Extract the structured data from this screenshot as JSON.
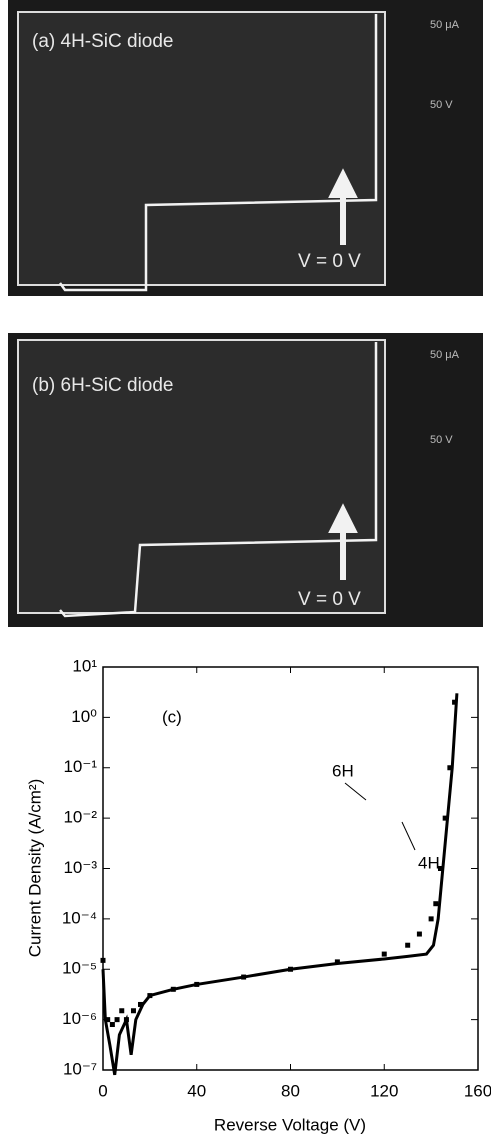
{
  "panels": [
    {
      "label": "(a) 4H-SiC diode",
      "annotation": "V = 0 V",
      "scale_labels": [
        "50 μA",
        "50 V"
      ]
    },
    {
      "label": "(b) 6H-SiC diode",
      "annotation": "V = 0 V",
      "scale_labels": [
        "50 μA",
        "50 V"
      ]
    }
  ],
  "chart_data": {
    "type": "scatter",
    "annotation": "(c)",
    "x_label": "Reverse Voltage (V)",
    "y_label": "Current Density (A/cm²)",
    "xlim": [
      0,
      160
    ],
    "xticks": [
      0,
      40,
      80,
      120,
      160
    ],
    "ylim": [
      1e-07,
      10
    ],
    "y_scale": "log",
    "yticks": [
      {
        "value": 1e-07,
        "label": "10⁻⁷"
      },
      {
        "value": 1e-06,
        "label": "10⁻⁶"
      },
      {
        "value": 1e-05,
        "label": "10⁻⁵"
      },
      {
        "value": 0.0001,
        "label": "10⁻⁴"
      },
      {
        "value": 0.001,
        "label": "10⁻³"
      },
      {
        "value": 0.01,
        "label": "10⁻²"
      },
      {
        "value": 0.1,
        "label": "10⁻¹"
      },
      {
        "value": 1,
        "label": "10⁰"
      },
      {
        "value": 10,
        "label": "10¹"
      }
    ],
    "series": [
      {
        "name": "6H",
        "color": "#000000",
        "x": [
          0,
          2,
          4,
          6,
          8,
          10,
          13,
          16,
          20,
          30,
          40,
          60,
          80,
          100,
          120,
          130,
          135,
          140,
          142,
          144,
          146,
          148,
          150
        ],
        "values": [
          1.5e-05,
          1e-06,
          8e-07,
          1e-06,
          1.5e-06,
          1e-06,
          1.5e-06,
          2e-06,
          3e-06,
          4e-06,
          5e-06,
          7e-06,
          1e-05,
          1.4e-05,
          2e-05,
          3e-05,
          5e-05,
          0.0001,
          0.0002,
          0.001,
          0.01,
          0.1,
          2
        ]
      },
      {
        "name": "4H",
        "color": "#000000",
        "x": [
          0,
          1,
          3,
          5,
          7,
          10,
          12,
          14,
          17,
          20,
          30,
          40,
          60,
          80,
          100,
          120,
          130,
          138,
          141,
          143,
          145,
          147,
          149,
          151
        ],
        "values": [
          1e-05,
          1e-06,
          3e-07,
          8e-08,
          5e-07,
          1e-06,
          2e-07,
          1e-06,
          2e-06,
          3e-06,
          4e-06,
          5e-06,
          7e-06,
          1e-05,
          1.3e-05,
          1.6e-05,
          1.8e-05,
          2e-05,
          3e-05,
          0.0001,
          0.001,
          0.01,
          0.1,
          3
        ]
      }
    ]
  }
}
